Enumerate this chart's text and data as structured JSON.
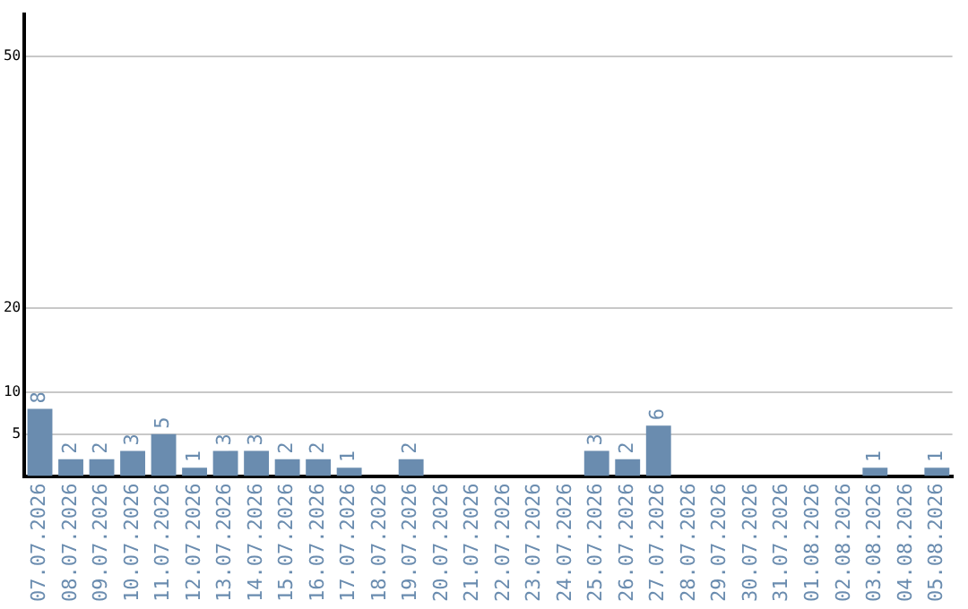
{
  "chart_data": {
    "type": "bar",
    "categories": [
      "07.07.2026",
      "08.07.2026",
      "09.07.2026",
      "10.07.2026",
      "11.07.2026",
      "12.07.2026",
      "13.07.2026",
      "14.07.2026",
      "15.07.2026",
      "16.07.2026",
      "17.07.2026",
      "18.07.2026",
      "19.07.2026",
      "20.07.2026",
      "21.07.2026",
      "22.07.2026",
      "23.07.2026",
      "24.07.2026",
      "25.07.2026",
      "26.07.2026",
      "27.07.2026",
      "28.07.2026",
      "29.07.2026",
      "30.07.2026",
      "31.07.2026",
      "01.08.2026",
      "02.08.2026",
      "03.08.2026",
      "04.08.2026",
      "05.08.2026"
    ],
    "values": [
      8,
      2,
      2,
      3,
      5,
      1,
      3,
      3,
      2,
      2,
      1,
      null,
      2,
      null,
      null,
      null,
      null,
      null,
      3,
      2,
      6,
      null,
      null,
      null,
      null,
      null,
      null,
      1,
      null,
      1
    ],
    "color": "#6a8caf",
    "ylim": [
      0,
      55
    ],
    "yticks": [
      5,
      10,
      20,
      50
    ],
    "grid": "y",
    "data_labels": true
  }
}
